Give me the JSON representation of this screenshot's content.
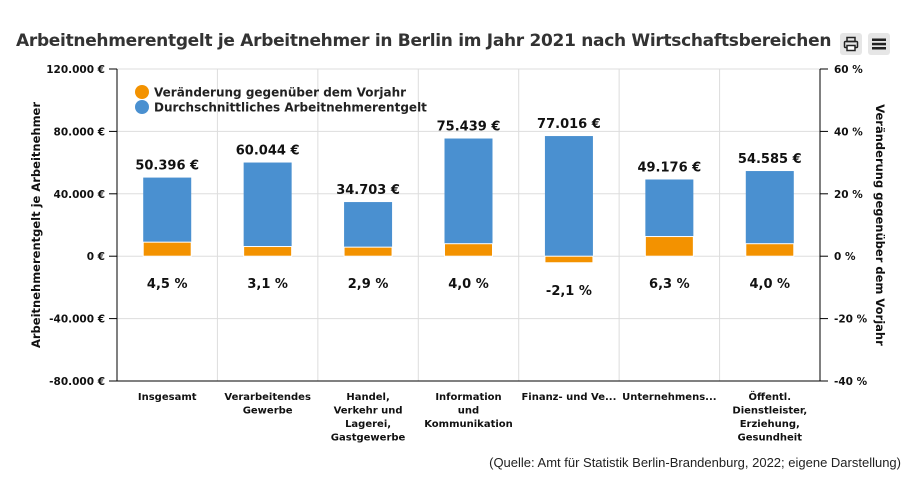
{
  "title": "Arbeitnehmerentgelt je Arbeitnehmer in Berlin im Jahr 2021 nach Wirtschaftsbereichen",
  "toolbar": {
    "print_icon": "printer-icon",
    "menu_icon": "hamburger-menu-icon"
  },
  "source": "(Quelle: Amt für Statistik Berlin-Brandenburg, 2022; eigene Darstellung)",
  "chart_data": {
    "type": "bar",
    "title": "Arbeitnehmerentgelt je Arbeitnehmer in Berlin im Jahr 2021 nach Wirtschaftsbereichen",
    "categories": [
      [
        "Insgesamt"
      ],
      [
        "Verarbeitendes",
        "Gewerbe"
      ],
      [
        "Handel,",
        "Verkehr und",
        "Lagerei,",
        "Gastgewerbe"
      ],
      [
        "Information",
        "und",
        "Kommunikation"
      ],
      [
        "Finanz- und Ve..."
      ],
      [
        "Unternehmens..."
      ],
      [
        "Öffentl.",
        "Dienstleister,",
        "Erziehung,",
        "Gesundheit"
      ]
    ],
    "series": [
      {
        "name": "Veränderung gegenüber dem Vorjahr",
        "axis": "right",
        "color": "#f39200",
        "values": [
          4.5,
          3.1,
          2.9,
          4.0,
          -2.1,
          6.3,
          4.0
        ],
        "labels": [
          "4,5 %",
          "3,1 %",
          "2,9 %",
          "4,0 %",
          "-2,1 %",
          "6,3 %",
          "4,0 %"
        ]
      },
      {
        "name": "Durchschnittliches Arbeitnehmerentgelt",
        "axis": "left",
        "color": "#4a90d0",
        "values": [
          50396,
          60044,
          34703,
          75439,
          77016,
          49176,
          54585
        ],
        "labels": [
          "50.396 €",
          "60.044 €",
          "34.703 €",
          "75.439 €",
          "77.016 €",
          "49.176 €",
          "54.585 €"
        ]
      }
    ],
    "ylabel": "Arbeitnehmerentgelt je Arbeitnehmer",
    "ylim": [
      -80000,
      120000
    ],
    "yticks": [
      -80000,
      -40000,
      0,
      40000,
      80000,
      120000
    ],
    "ytick_labels": [
      "-80.000 €",
      "-40.000 €",
      "0 €",
      "40.000 €",
      "80.000 €",
      "120.000 €"
    ],
    "y2label": "Veränderung gegenüber dem Vorjahr",
    "y2lim": [
      -40,
      60
    ],
    "y2ticks": [
      -40,
      -20,
      0,
      20,
      40,
      60
    ],
    "y2tick_labels": [
      "-40 %",
      "-20 %",
      "0 %",
      "20 %",
      "40 %",
      "60 %"
    ],
    "grid": true,
    "legend": "top-left"
  }
}
